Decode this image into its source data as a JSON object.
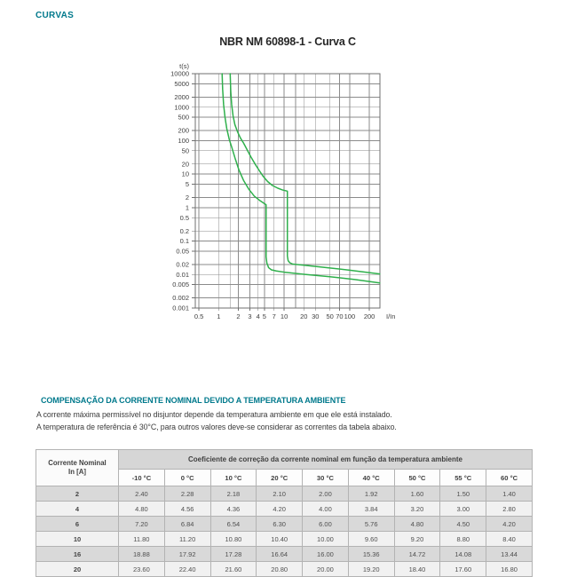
{
  "page": {
    "section_label": "CURVAS",
    "accent_color": "#00798C"
  },
  "chart_data": {
    "type": "line",
    "title": "NBR NM 60898-1 - Curva C",
    "grid": true,
    "colors": {
      "curve": "#2FB04C",
      "grid": "#8B8B8B",
      "border": "#6F6F6F",
      "tick_text": "#3D3D3D"
    },
    "x_axis": {
      "label": "I/In",
      "scale": "log",
      "min": 0.44,
      "max": 290,
      "gridlines": [
        0.5,
        1,
        1.5,
        2,
        3,
        4,
        5,
        7,
        10,
        15,
        20,
        30,
        50,
        70,
        100,
        200
      ],
      "tick_labels": [
        "0.5",
        "1",
        "2",
        "3",
        "4",
        "5",
        "7",
        "10",
        "20",
        "30",
        "50",
        "70",
        "100",
        "200"
      ]
    },
    "y_axis": {
      "label": "t(s)",
      "scale": "log",
      "min": 0.001,
      "max": 10000,
      "tick_labels": [
        "10000",
        "5000",
        "2000",
        "1000",
        "500",
        "200",
        "100",
        "50",
        "20",
        "10",
        "5",
        "2",
        "1",
        "0.5",
        "0.2",
        "0.1",
        "0.05",
        "0.02",
        "0.01",
        "0.005",
        "0.002",
        "0.001"
      ]
    },
    "series": [
      {
        "name": "trip-curve-lower",
        "color": "#2FB04C",
        "points": [
          [
            1.13,
            10000
          ],
          [
            1.15,
            3500
          ],
          [
            1.19,
            1200
          ],
          [
            1.25,
            500
          ],
          [
            1.33,
            230
          ],
          [
            1.45,
            110
          ],
          [
            1.6,
            60
          ],
          [
            1.8,
            28
          ],
          [
            2.05,
            13
          ],
          [
            2.4,
            6.5
          ],
          [
            2.9,
            3.5
          ],
          [
            3.5,
            2.2
          ],
          [
            4.3,
            1.6
          ],
          [
            5.3,
            1.22
          ],
          [
            5.3,
            0.034
          ],
          [
            5.45,
            0.022
          ],
          [
            5.8,
            0.016
          ],
          [
            6.4,
            0.0138
          ],
          [
            7.6,
            0.0128
          ],
          [
            10,
            0.0118
          ],
          [
            20,
            0.0102
          ],
          [
            50,
            0.0086
          ],
          [
            120,
            0.0071
          ],
          [
            288,
            0.0056
          ]
        ]
      },
      {
        "name": "trip-curve-upper",
        "color": "#2FB04C",
        "points": [
          [
            1.5,
            10000
          ],
          [
            1.53,
            3000
          ],
          [
            1.58,
            1200
          ],
          [
            1.66,
            550
          ],
          [
            1.77,
            300
          ],
          [
            1.95,
            180
          ],
          [
            2.15,
            120
          ],
          [
            2.4,
            85
          ],
          [
            2.7,
            55
          ],
          [
            3.1,
            33
          ],
          [
            3.6,
            20
          ],
          [
            4.2,
            12.5
          ],
          [
            4.8,
            8.5
          ],
          [
            5.6,
            6.0
          ],
          [
            6.6,
            4.6
          ],
          [
            8.0,
            3.8
          ],
          [
            9.5,
            3.35
          ],
          [
            11.2,
            3.1
          ],
          [
            11.2,
            0.036
          ],
          [
            11.5,
            0.026
          ],
          [
            12.2,
            0.0225
          ],
          [
            13.5,
            0.0205
          ],
          [
            20,
            0.019
          ],
          [
            40,
            0.0165
          ],
          [
            100,
            0.0135
          ],
          [
            288,
            0.0104
          ]
        ]
      }
    ]
  },
  "compensation": {
    "heading": "COMPENSAÇÃO DA CORRENTE NOMINAL DEVIDO A TEMPERATURA AMBIENTE",
    "body_lines": [
      "A corrente máxima permissível no disjuntor depende da temperatura ambiente em que ele está instalado.",
      "A temperatura de referência é 30°C, para outros valores deve-se considerar as correntes da tabela abaixo."
    ]
  },
  "table": {
    "col_header_line1": "Corrente Nominal",
    "col_header_line2": "In [A]",
    "span_header": "Coeficiente de correção da corrente nominal em função da temperatura ambiente",
    "temp_headers": [
      "-10 °C",
      "0 °C",
      "10 °C",
      "20 °C",
      "30 °C",
      "40 °C",
      "50 °C",
      "55 °C",
      "60 °C"
    ],
    "rows": [
      {
        "in": "2",
        "values": [
          "2.40",
          "2.28",
          "2.18",
          "2.10",
          "2.00",
          "1.92",
          "1.60",
          "1.50",
          "1.40"
        ]
      },
      {
        "in": "4",
        "values": [
          "4.80",
          "4.56",
          "4.36",
          "4.20",
          "4.00",
          "3.84",
          "3.20",
          "3.00",
          "2.80"
        ]
      },
      {
        "in": "6",
        "values": [
          "7.20",
          "6.84",
          "6.54",
          "6.30",
          "6.00",
          "5.76",
          "4.80",
          "4.50",
          "4.20"
        ]
      },
      {
        "in": "10",
        "values": [
          "11.80",
          "11.20",
          "10.80",
          "10.40",
          "10.00",
          "9.60",
          "9.20",
          "8.80",
          "8.40"
        ]
      },
      {
        "in": "16",
        "values": [
          "18.88",
          "17.92",
          "17.28",
          "16.64",
          "16.00",
          "15.36",
          "14.72",
          "14.08",
          "13.44"
        ]
      },
      {
        "in": "20",
        "values": [
          "23.60",
          "22.40",
          "21.60",
          "20.80",
          "20.00",
          "19.20",
          "18.40",
          "17.60",
          "16.80"
        ]
      }
    ]
  }
}
